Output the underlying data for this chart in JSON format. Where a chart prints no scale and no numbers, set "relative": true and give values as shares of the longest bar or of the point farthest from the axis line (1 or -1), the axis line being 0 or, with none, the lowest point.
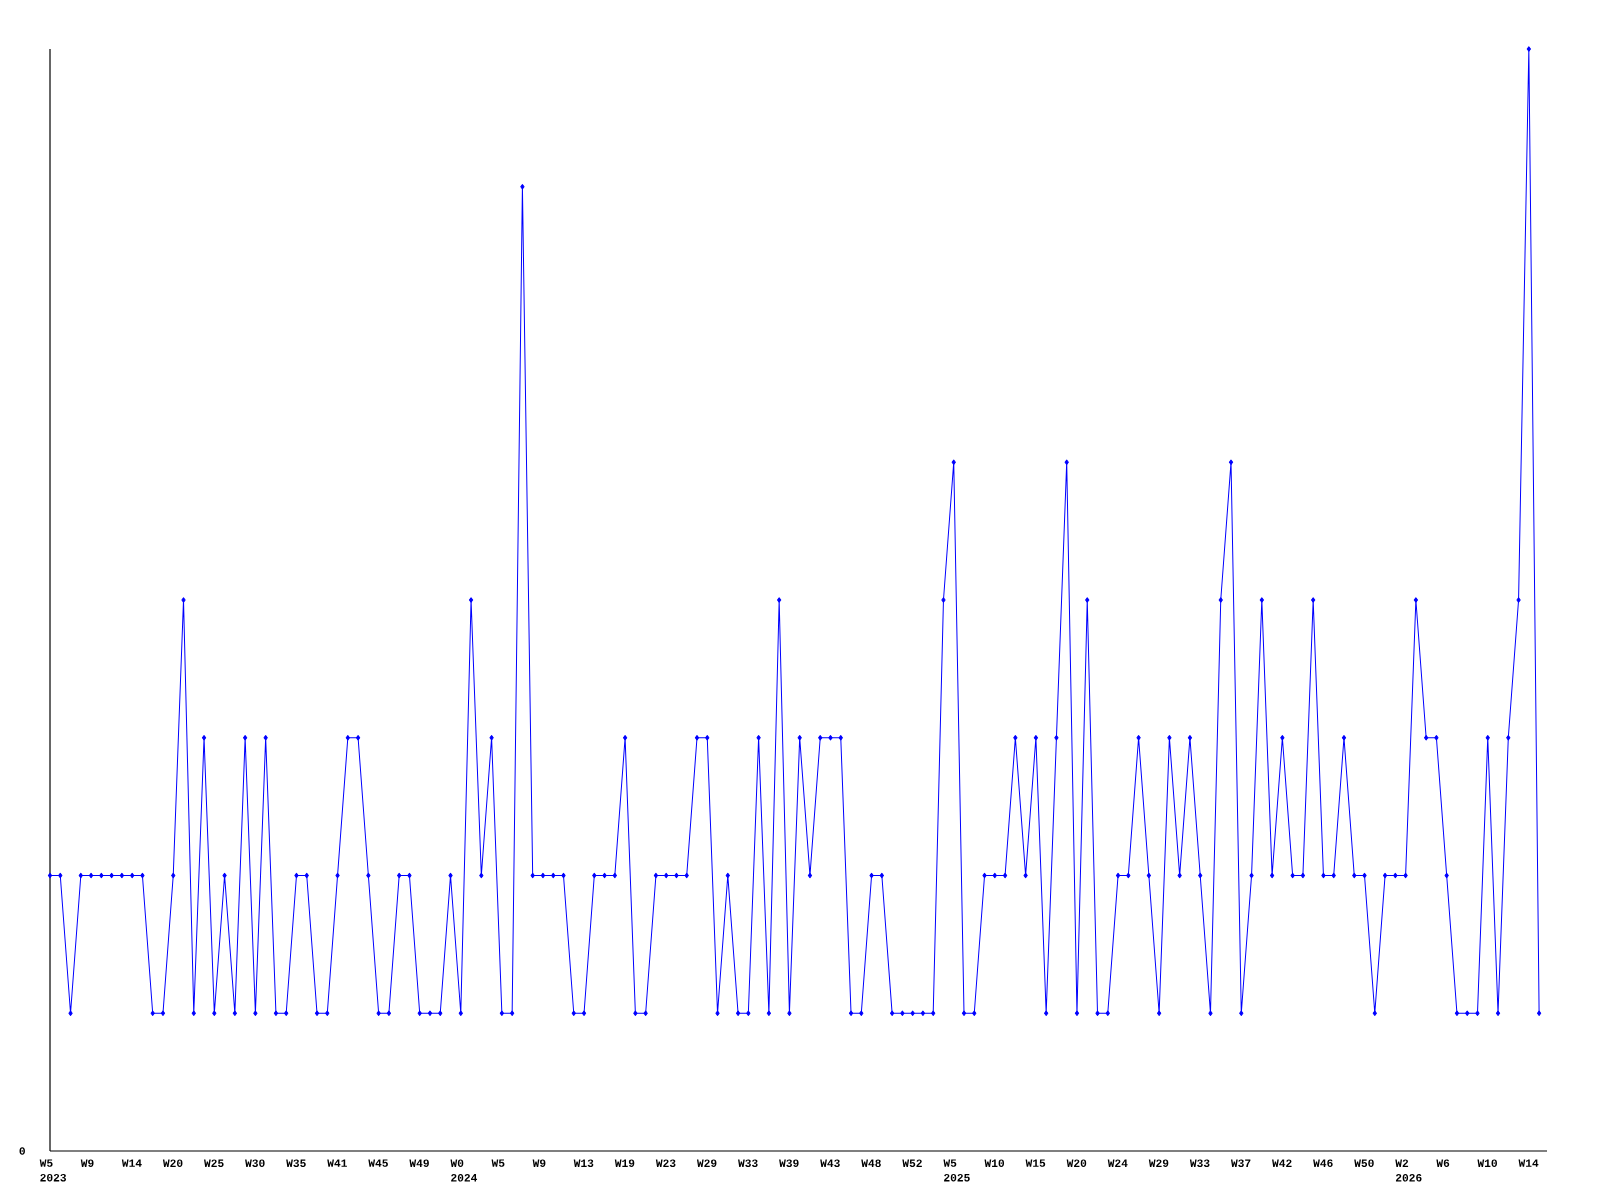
{
  "chart_data": {
    "type": "line",
    "relative": true,
    "color": "#0000ff",
    "marker": "diamond",
    "line_style": "solid",
    "annotations": [
      "0"
    ],
    "categories": [
      "W5 2023",
      null,
      null,
      null,
      "W9",
      null,
      null,
      null,
      "W14",
      null,
      null,
      null,
      "W20",
      null,
      null,
      null,
      "W25",
      null,
      null,
      null,
      "W30",
      null,
      null,
      null,
      "W35",
      null,
      null,
      null,
      "W41",
      null,
      null,
      null,
      "W45",
      null,
      null,
      null,
      "W49",
      null,
      null,
      null,
      "W0 2024",
      null,
      null,
      null,
      "W5",
      null,
      null,
      null,
      "W9",
      null,
      null,
      null,
      "W13",
      null,
      null,
      null,
      "W19",
      null,
      null,
      null,
      "W23",
      null,
      null,
      null,
      "W29",
      null,
      null,
      null,
      "W33",
      null,
      null,
      null,
      "W39",
      null,
      null,
      null,
      "W43",
      null,
      null,
      null,
      "W48",
      null,
      null,
      null,
      "W52",
      null,
      null,
      null,
      "W5 2025",
      null,
      null,
      null,
      "W10",
      null,
      null,
      null,
      "W15",
      null,
      null,
      null,
      "W20",
      null,
      null,
      null,
      "W24",
      null,
      null,
      null,
      "W29",
      null,
      null,
      null,
      "W33",
      null,
      null,
      null,
      "W37",
      null,
      null,
      null,
      "W42",
      null,
      null,
      null,
      "W46",
      null,
      null,
      null,
      "W50",
      null,
      null,
      null,
      "W2 2026",
      null,
      null,
      null,
      "W6",
      null,
      null,
      null,
      "W10",
      null,
      null,
      null,
      "W14",
      null
    ],
    "values": [
      0.25,
      0.25,
      0.125,
      0.25,
      0.25,
      0.25,
      0.25,
      0.25,
      0.25,
      0.25,
      0.125,
      0.125,
      0.25,
      0.5,
      0.125,
      0.375,
      0.125,
      0.25,
      0.125,
      0.375,
      0.125,
      0.375,
      0.125,
      0.125,
      0.25,
      0.25,
      0.125,
      0.125,
      0.25,
      0.375,
      0.375,
      0.25,
      0.125,
      0.125,
      0.25,
      0.25,
      0.125,
      0.125,
      0.125,
      0.25,
      0.125,
      0.5,
      0.25,
      0.375,
      0.125,
      0.125,
      0.875,
      0.25,
      0.25,
      0.25,
      0.25,
      0.125,
      0.125,
      0.25,
      0.25,
      0.25,
      0.375,
      0.125,
      0.125,
      0.25,
      0.25,
      0.25,
      0.25,
      0.375,
      0.375,
      0.125,
      0.25,
      0.125,
      0.125,
      0.375,
      0.125,
      0.5,
      0.125,
      0.375,
      0.25,
      0.375,
      0.375,
      0.375,
      0.125,
      0.125,
      0.25,
      0.25,
      0.125,
      0.125,
      0.125,
      0.125,
      0.125,
      0.5,
      0.625,
      0.125,
      0.125,
      0.25,
      0.25,
      0.25,
      0.375,
      0.25,
      0.375,
      0.125,
      0.375,
      0.625,
      0.125,
      0.5,
      0.125,
      0.125,
      0.25,
      0.25,
      0.375,
      0.25,
      0.125,
      0.375,
      0.25,
      0.375,
      0.25,
      0.125,
      0.5,
      0.625,
      0.125,
      0.25,
      0.5,
      0.25,
      0.375,
      0.25,
      0.25,
      0.5,
      0.25,
      0.25,
      0.375,
      0.25,
      0.25,
      0.125,
      0.25,
      0.25,
      0.25,
      0.5,
      0.375,
      0.375,
      0.25,
      0.125,
      0.125,
      0.125,
      0.375,
      0.125,
      0.375,
      0.5,
      1,
      0.125
    ]
  }
}
